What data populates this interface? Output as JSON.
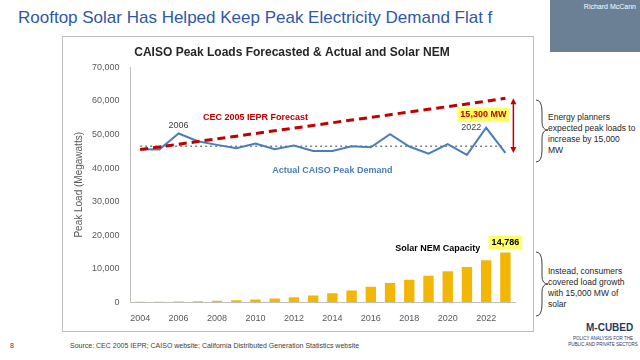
{
  "slide": {
    "title": "Rooftop Solar Has Helped Keep Peak Electricity Demand Flat f",
    "speaker": "Richard McCann",
    "side_notes": [
      "Energy planners expected peak loads to increase by 15,000 MW",
      "Instead, consumers covered load growth with 15,000 MW of solar"
    ],
    "source": "Source: CEC 2005 IEPR; CAISO website; California Distributed Generation Statistics website",
    "page_number": "8",
    "logo": [
      "M-CUBED",
      "POLICY ANALYSIS FOR THE PUBLIC AND PRIVATE SECTORS"
    ]
  },
  "chart_data": {
    "type": "bar",
    "title": "CAISO Peak Loads Forecasted & Actual and Solar NEM",
    "y_label": "Peak Load (Megawatts)",
    "categories": [
      "2004",
      null,
      "2006",
      null,
      "2008",
      null,
      "2010",
      null,
      "2012",
      null,
      "2014",
      null,
      "2016",
      null,
      "2018",
      null,
      "2020",
      null,
      "2022",
      null
    ],
    "series": [
      {
        "name": "Solar NEM Capacity",
        "type": "bar",
        "color": "#f2b705",
        "values": [
          100,
          150,
          200,
          300,
          450,
          600,
          800,
          1100,
          1500,
          2000,
          2700,
          3500,
          4600,
          5700,
          6700,
          7900,
          9200,
          10500,
          12500,
          14786
        ],
        "value_labels": [
          null,
          null,
          null,
          null,
          null,
          null,
          null,
          null,
          null,
          null,
          null,
          null,
          null,
          null,
          null,
          null,
          null,
          null,
          null,
          "14,786"
        ]
      },
      {
        "name": "CEC 2005 IEPR Forecast",
        "type": "line",
        "color": "#c00000",
        "line_style": "dashed",
        "values": [
          45500,
          46300,
          47100,
          47900,
          48700,
          49500,
          50300,
          51100,
          51900,
          52700,
          53500,
          54300,
          55100,
          55900,
          56700,
          57500,
          58300,
          59100,
          59900,
          60800
        ]
      },
      {
        "name": "Actual CAISO Peak Demand",
        "type": "line",
        "color": "#4a7ebb",
        "line_style": "solid",
        "values": [
          45600,
          45500,
          50300,
          48000,
          46900,
          45900,
          47300,
          45600,
          46700,
          45100,
          45100,
          46500,
          46200,
          50100,
          46400,
          44300,
          47100,
          43900,
          52000,
          44500
        ]
      },
      {
        "type": "line",
        "color": "#808080",
        "line_style": "dotted",
        "values": [
          46500,
          46500,
          46500,
          46500,
          46500,
          46500,
          46500,
          46500,
          46500,
          46500,
          46500,
          46500,
          46500,
          46500,
          46500,
          46500,
          46500,
          46500,
          46500,
          46500
        ]
      }
    ],
    "annotations": [
      {
        "text": "2006",
        "series": "Actual CAISO Peak Demand",
        "category": "2006"
      },
      {
        "text": "2022",
        "series": "Actual CAISO Peak Demand",
        "category": "2022"
      },
      {
        "text": "15,300 MW",
        "between": [
          "CEC 2005 IEPR Forecast",
          "Actual CAISO Peak Demand"
        ]
      }
    ],
    "ylim": [
      0,
      70000
    ],
    "yticks": [
      0,
      {
        "value": 10000,
        "label": "10,000"
      },
      {
        "value": 20000,
        "label": "20,000"
      },
      {
        "value": 30000,
        "label": "30,000"
      },
      {
        "value": 40000,
        "label": "40,000"
      },
      {
        "value": 50000,
        "label": "50,000"
      },
      {
        "value": 60000,
        "label": "60,000"
      },
      {
        "value": 70000,
        "label": "70,000"
      }
    ],
    "grid": false
  }
}
